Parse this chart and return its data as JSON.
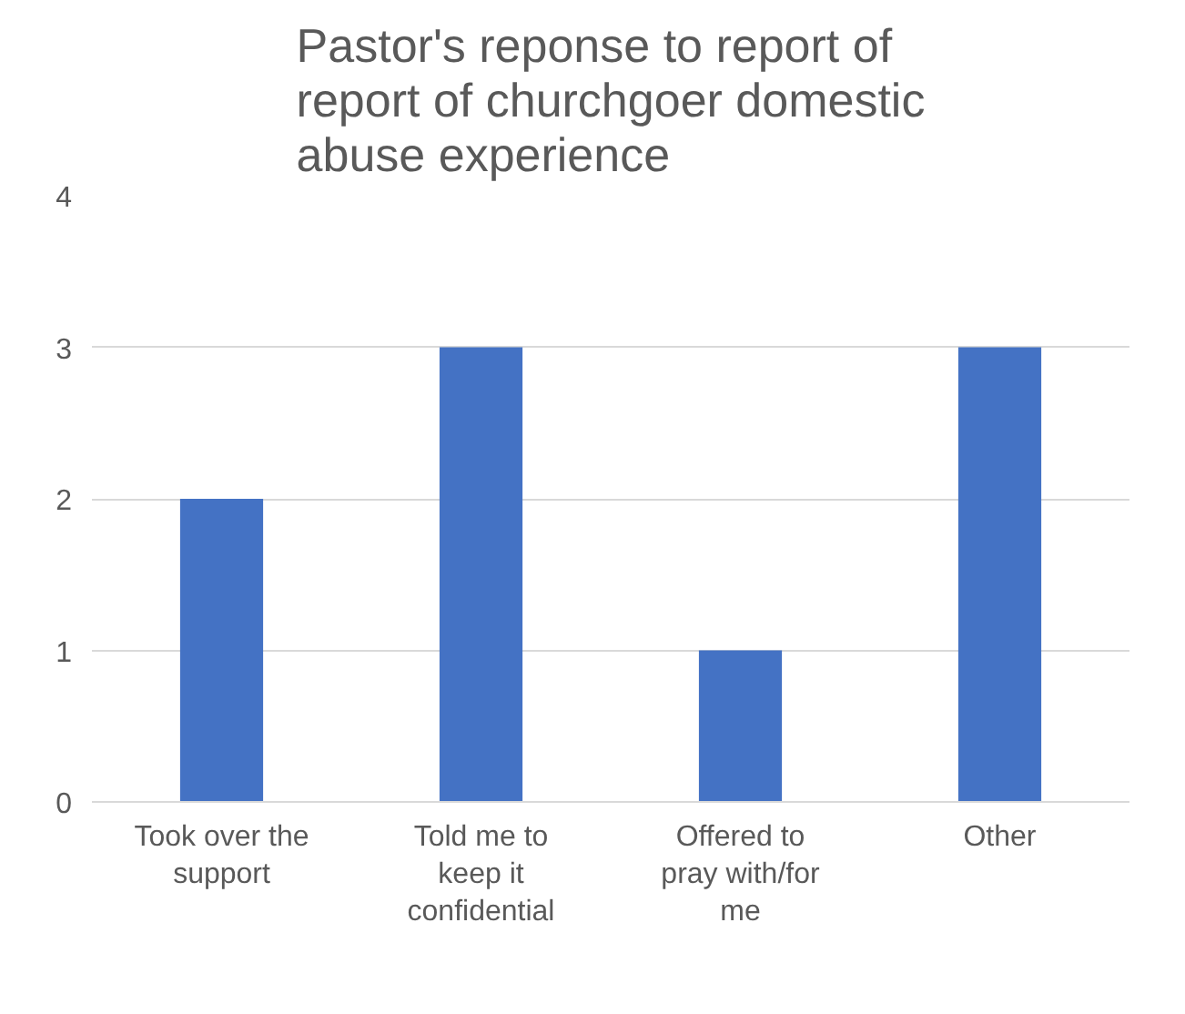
{
  "chart_data": {
    "type": "bar",
    "title": "Pastor's reponse to report of report of churchgoer domestic abuse experience",
    "categories": [
      "Took over the support",
      "Told me to keep it confidential",
      "Offered to pray with/for me",
      "Other"
    ],
    "values": [
      2,
      3,
      1,
      3
    ],
    "color": "#4472c4",
    "ylim": [
      0,
      4
    ],
    "yticks": [
      0,
      1,
      2,
      3,
      4
    ],
    "grid": "y"
  }
}
